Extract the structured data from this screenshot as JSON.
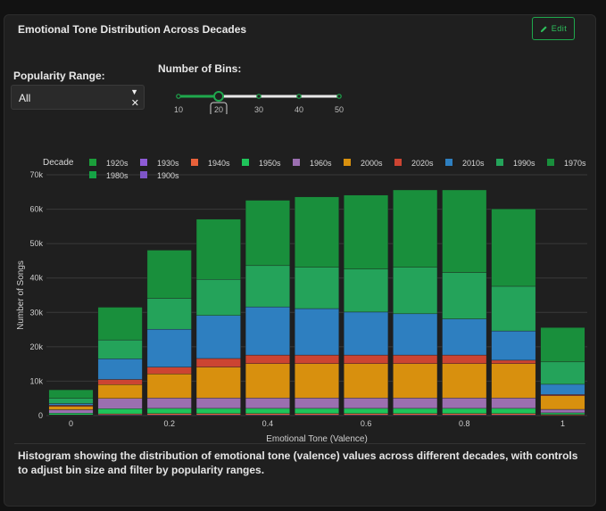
{
  "card": {
    "title": "Emotional Tone Distribution Across Decades",
    "edit_label": "Edit",
    "description": "Histogram showing the distribution of emotional tone (valence) values across different decades, with controls to adjust bin size and filter by popularity ranges."
  },
  "controls": {
    "popularity_label": "Popularity Range:",
    "popularity_value": "All",
    "bins_label": "Number of Bins:",
    "bins_marks": [
      "10",
      "20",
      "30",
      "40",
      "50"
    ],
    "bins_value": 20,
    "accent": "#1fa84d"
  },
  "chart_data": {
    "type": "bar",
    "stacked": true,
    "title": "",
    "xlabel": "Emotional Tone (Valence)",
    "ylabel": "Number of Songs",
    "legend_title": "Decade",
    "legend_placement": "top",
    "xlim": [
      -0.05,
      1.05
    ],
    "ylim": [
      0,
      70000
    ],
    "x_ticks": [
      0,
      0.2,
      0.4,
      0.6,
      0.8,
      1
    ],
    "x_tick_labels": [
      "0",
      "0.2",
      "0.4",
      "0.6",
      "0.8",
      "1"
    ],
    "y_ticks": [
      0,
      10000,
      20000,
      30000,
      40000,
      50000,
      60000,
      70000
    ],
    "y_tick_labels": [
      "0",
      "10k",
      "20k",
      "30k",
      "40k",
      "50k",
      "60k",
      "70k"
    ],
    "grid": true,
    "bin_centers": [
      0,
      0.1,
      0.2,
      0.3,
      0.4,
      0.5,
      0.6,
      0.7,
      0.8,
      0.9,
      1.0
    ],
    "bin_width": 0.09,
    "series": [
      {
        "name": "1920s",
        "color": "#1b9e3a",
        "values": [
          0,
          0,
          0,
          0,
          0,
          0,
          0,
          0,
          0,
          0,
          0
        ]
      },
      {
        "name": "1930s",
        "color": "#8e5bd6",
        "values": [
          100,
          200,
          200,
          200,
          200,
          200,
          200,
          200,
          200,
          200,
          100
        ]
      },
      {
        "name": "1940s",
        "color": "#e8613a",
        "values": [
          100,
          300,
          400,
          400,
          400,
          400,
          400,
          400,
          400,
          400,
          200
        ]
      },
      {
        "name": "1950s",
        "color": "#1fc45a",
        "values": [
          500,
          1500,
          1500,
          1500,
          1500,
          1500,
          1500,
          1500,
          1500,
          1500,
          500
        ]
      },
      {
        "name": "1960s",
        "color": "#9b6fb0",
        "values": [
          1000,
          3000,
          3000,
          3000,
          3000,
          3000,
          3000,
          3000,
          3000,
          3000,
          1000
        ]
      },
      {
        "name": "2000s",
        "color": "#d8900e",
        "values": [
          1000,
          4000,
          7000,
          9000,
          10000,
          10000,
          10000,
          10000,
          10000,
          10000,
          4000
        ]
      },
      {
        "name": "2020s",
        "color": "#cc4432",
        "values": [
          300,
          1500,
          2000,
          2500,
          2500,
          2500,
          2500,
          2500,
          2500,
          1000,
          300
        ]
      },
      {
        "name": "2010s",
        "color": "#2e7fc0",
        "values": [
          500,
          6000,
          11000,
          12500,
          14000,
          13500,
          12500,
          12000,
          10500,
          8500,
          3000
        ]
      },
      {
        "name": "1990s",
        "color": "#24a35a",
        "values": [
          1500,
          5500,
          9000,
          10500,
          12000,
          12000,
          12500,
          13500,
          13500,
          13000,
          6500
        ]
      },
      {
        "name": "1970s",
        "color": "#198f3c",
        "values": [
          2500,
          9500,
          14000,
          17500,
          19000,
          20500,
          21500,
          22500,
          24000,
          22500,
          10000
        ]
      },
      {
        "name": "1980s",
        "color": "#15a345",
        "values": [
          0,
          0,
          0,
          0,
          0,
          0,
          0,
          0,
          0,
          0,
          0
        ]
      },
      {
        "name": "1900s",
        "color": "#7e55c8",
        "values": [
          0,
          0,
          0,
          0,
          0,
          0,
          0,
          0,
          0,
          0,
          0
        ]
      }
    ]
  }
}
